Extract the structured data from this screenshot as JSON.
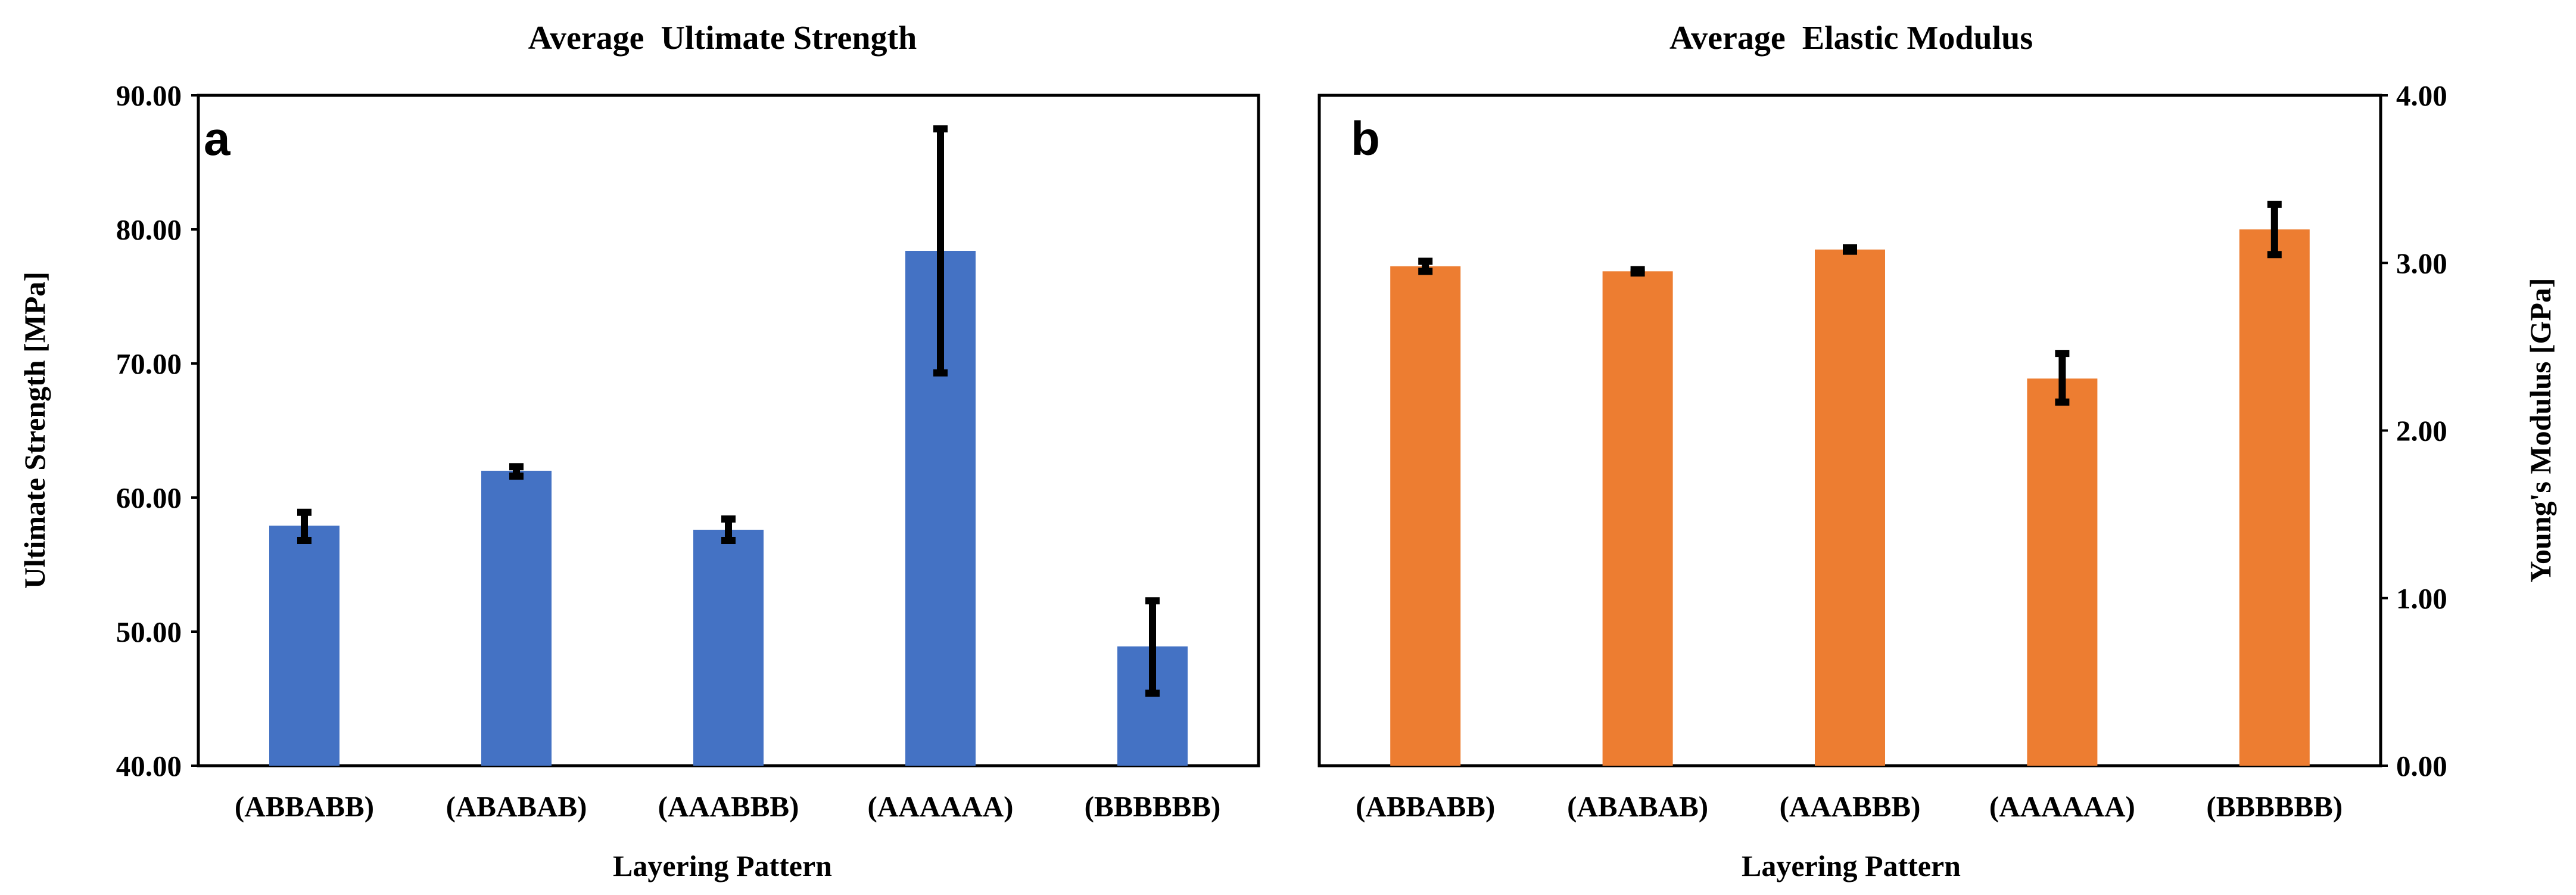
{
  "chart_data": [
    {
      "type": "bar",
      "panel_label": "a",
      "title": "Average  Ultimate Strength",
      "xlabel": "Layering Pattern",
      "ylabel": "Ultimate Strength [MPa]",
      "y_axis_side": "left",
      "ylim": [
        40,
        90
      ],
      "yticks": [
        "40.00",
        "50.00",
        "60.00",
        "70.00",
        "80.00",
        "90.00"
      ],
      "categories": [
        "(ABBABB)",
        "(ABABAB)",
        "(AAABBB)",
        "(AAAAAA)",
        "(BBBBBB)"
      ],
      "values": [
        57.9,
        62.0,
        57.6,
        78.4,
        48.9
      ],
      "error_bars": [
        {
          "low": 56.8,
          "high": 58.9
        },
        {
          "low": 61.6,
          "high": 62.3
        },
        {
          "low": 56.8,
          "high": 58.4
        },
        {
          "low": 69.3,
          "high": 87.5
        },
        {
          "low": 45.4,
          "high": 52.3
        }
      ],
      "color": "#4472C4",
      "grid": false,
      "legend": "none"
    },
    {
      "type": "bar",
      "panel_label": "b",
      "title": "Average  Elastic Modulus",
      "xlabel": "Layering Pattern",
      "ylabel": "Young's Modulus [GPa]",
      "y_axis_side": "right",
      "ylim": [
        0,
        4
      ],
      "yticks": [
        "0.00",
        "1.00",
        "2.00",
        "3.00",
        "4.00"
      ],
      "categories": [
        "(ABBABB)",
        "(ABABAB)",
        "(AAABBB)",
        "(AAAAAA)",
        "(BBBBBB)"
      ],
      "values": [
        2.98,
        2.95,
        3.08,
        2.31,
        3.2
      ],
      "error_bars": [
        {
          "low": 2.95,
          "high": 3.01
        },
        {
          "low": 2.94,
          "high": 2.96
        },
        {
          "low": 3.07,
          "high": 3.09
        },
        {
          "low": 2.17,
          "high": 2.46
        },
        {
          "low": 3.05,
          "high": 3.35
        }
      ],
      "color": "#ED7D31",
      "grid": false,
      "legend": "none"
    }
  ]
}
